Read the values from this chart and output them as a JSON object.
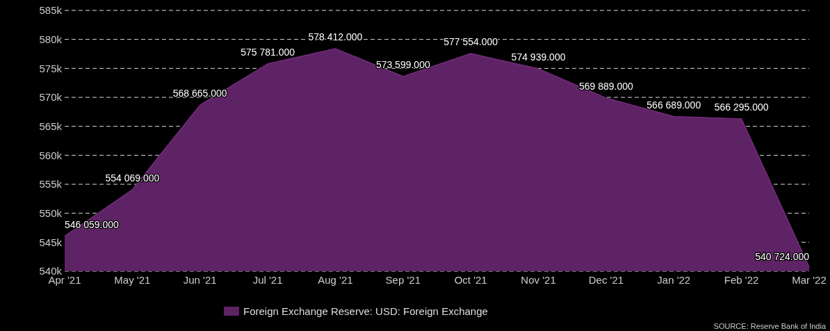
{
  "chart_data": {
    "type": "area",
    "categories": [
      "Apr '21",
      "May '21",
      "Jun '21",
      "Jul '21",
      "Aug '21",
      "Sep '21",
      "Oct '21",
      "Nov '21",
      "Dec '21",
      "Jan '22",
      "Feb '22",
      "Mar '22"
    ],
    "series": [
      {
        "name": "Foreign Exchange Reserve: USD: Foreign Exchange",
        "color": "#5e2364",
        "values": [
          546059,
          554069,
          568665,
          575781,
          578412,
          573599,
          577554,
          574939,
          569889,
          566689,
          566295,
          540724
        ],
        "value_labels": [
          "546 059.000",
          "554 069.000",
          "568 665.000",
          "575 781.000",
          "578 412.000",
          "573 599.000",
          "577 554.000",
          "574 939.000",
          "569 889.000",
          "566 689.000",
          "566 295.000",
          "540 724.000"
        ]
      }
    ],
    "ylim": [
      540000,
      585000
    ],
    "yticks": [
      {
        "value": 540000,
        "label": "540k"
      },
      {
        "value": 545000,
        "label": "545k"
      },
      {
        "value": 550000,
        "label": "550k"
      },
      {
        "value": 555000,
        "label": "555k"
      },
      {
        "value": 560000,
        "label": "560k"
      },
      {
        "value": 565000,
        "label": "565k"
      },
      {
        "value": 570000,
        "label": "570k"
      },
      {
        "value": 575000,
        "label": "575k"
      },
      {
        "value": 580000,
        "label": "580k"
      },
      {
        "value": 585000,
        "label": "585k"
      }
    ],
    "grid": "y",
    "legend": "bottom",
    "annotations": [
      "SOURCE: Reserve Bank of India"
    ]
  }
}
